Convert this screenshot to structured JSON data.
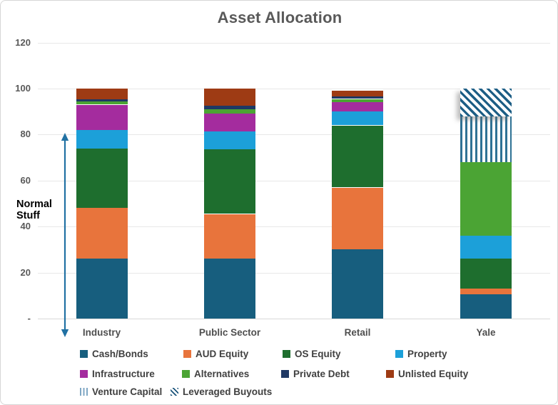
{
  "title": "Asset Allocation",
  "annotation": {
    "line1": "Normal",
    "line2": "Stuff"
  },
  "chart_data": {
    "type": "bar",
    "stacked": true,
    "title": "Asset Allocation",
    "categories": [
      "Industry",
      "Public Sector",
      "Retail",
      "Yale"
    ],
    "series": [
      {
        "name": "Cash/Bonds",
        "color": "#175E7E",
        "pattern": "solid",
        "values": [
          26,
          26,
          30,
          10.5
        ]
      },
      {
        "name": "AUD Equity",
        "color": "#E8743C",
        "pattern": "solid",
        "values": [
          22,
          19.5,
          27,
          2.5
        ]
      },
      {
        "name": "OS Equity",
        "color": "#1E6E2E",
        "pattern": "solid",
        "values": [
          26,
          28,
          27,
          13
        ]
      },
      {
        "name": "Property",
        "color": "#1CA0D9",
        "pattern": "solid",
        "values": [
          8,
          8,
          6,
          10
        ]
      },
      {
        "name": "Infrastructure",
        "color": "#A42C9E",
        "pattern": "solid",
        "values": [
          11,
          7.5,
          4,
          0
        ]
      },
      {
        "name": "Alternatives",
        "color": "#4BA434",
        "pattern": "solid",
        "values": [
          1.5,
          2,
          1.5,
          32
        ]
      },
      {
        "name": "Private Debt",
        "color": "#1F3864",
        "pattern": "solid",
        "values": [
          1,
          1.5,
          1,
          0
        ]
      },
      {
        "name": "Unlisted Equity",
        "color": "#9E3B14",
        "pattern": "solid",
        "values": [
          4.5,
          7.5,
          2.5,
          0
        ]
      },
      {
        "name": "Venture Capital",
        "color": "#2F7295",
        "pattern": "vertical-stripes",
        "values": [
          0,
          0,
          0,
          20
        ]
      },
      {
        "name": "Leveraged Buyouts",
        "color": "#1D5E85",
        "pattern": "diagonal-stripes",
        "values": [
          0,
          0,
          0,
          12
        ]
      }
    ],
    "totals": [
      100,
      100,
      99,
      100
    ],
    "y_axis": {
      "tick_labels": [
        "120",
        "100",
        "80",
        "60",
        "40",
        "20",
        "-"
      ],
      "tick_values": [
        120,
        100,
        80,
        60,
        40,
        20,
        0
      ],
      "ylim": [
        0,
        120
      ],
      "grid": true
    },
    "legend_position": "bottom",
    "annotation_text": "Normal Stuff",
    "annotation_range": [
      0,
      78
    ]
  },
  "colors": {
    "arrow": "#2171A3",
    "axis_text": "#595959",
    "legend_text": "#404040",
    "gridline": "#E8E8E8"
  }
}
